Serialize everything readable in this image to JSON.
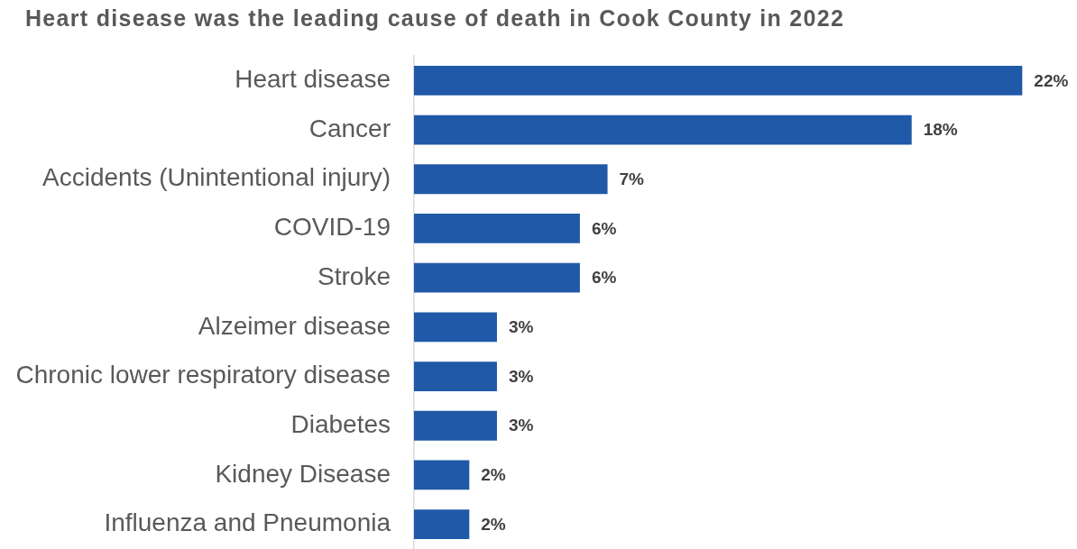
{
  "chart_data": {
    "type": "bar",
    "orientation": "horizontal",
    "title": "Heart disease was the leading cause of death in Cook County in 2022",
    "categories": [
      "Heart disease",
      "Cancer",
      "Accidents (Unintentional injury)",
      "COVID-19",
      "Stroke",
      "Alzeimer disease",
      "Chronic lower respiratory disease",
      "Diabetes",
      "Kidney Disease",
      "Influenza and Pneumonia"
    ],
    "values": [
      22,
      18,
      7,
      6,
      6,
      3,
      3,
      3,
      2,
      2
    ],
    "value_labels": [
      "22%",
      "18%",
      "7%",
      "6%",
      "6%",
      "3%",
      "3%",
      "3%",
      "2%",
      "2%"
    ],
    "color": "#2059a8",
    "tick_labels": "y"
  }
}
